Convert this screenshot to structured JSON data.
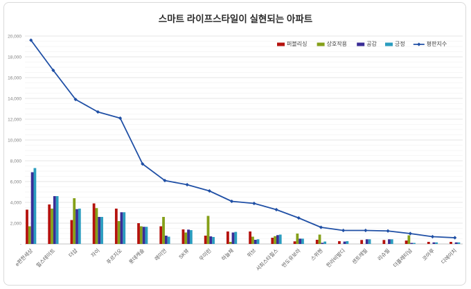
{
  "chart_data": {
    "type": "bar",
    "subtype": "grouped-bars-with-line-overlay",
    "title": "스마트 라이프스타일이 실현되는 아파트",
    "categories": [
      "e편한세상",
      "힐스테이트",
      "더샵",
      "자이",
      "푸르지오",
      "롯데캐슬",
      "래미안",
      "SK뷰",
      "우미린",
      "하늘채",
      "위브",
      "서희스타힐스",
      "반도유보라",
      "스위첸",
      "한라비발디",
      "센트레빌",
      "리슈빌",
      "더플래티넘",
      "코아루",
      "디에이치"
    ],
    "series": [
      {
        "name": "퍼블리싱",
        "type": "bar",
        "color": "#b5120d",
        "values": [
          3300,
          3800,
          2300,
          3900,
          3400,
          2000,
          1700,
          1400,
          800,
          1200,
          1200,
          600,
          250,
          400,
          270,
          380,
          380,
          330,
          200,
          200
        ]
      },
      {
        "name": "상호작용",
        "type": "bar",
        "color": "#85a019",
        "values": [
          1700,
          3400,
          4400,
          3450,
          2200,
          1700,
          2600,
          1100,
          2700,
          200,
          700,
          750,
          1000,
          900,
          0,
          0,
          0,
          830,
          0,
          0
        ]
      },
      {
        "name": "공감",
        "type": "bar",
        "color": "#3a2d96",
        "values": [
          6900,
          4600,
          3350,
          2600,
          3050,
          1650,
          800,
          1380,
          730,
          1100,
          400,
          850,
          510,
          110,
          230,
          450,
          450,
          100,
          150,
          150
        ]
      },
      {
        "name": "긍정",
        "type": "bar",
        "color": "#2b9dbf",
        "values": [
          7300,
          4600,
          3400,
          2600,
          3050,
          1650,
          700,
          1330,
          670,
          1160,
          450,
          900,
          510,
          230,
          270,
          450,
          450,
          100,
          150,
          150
        ]
      },
      {
        "name": "평판지수",
        "type": "line",
        "color": "#1f4fa5",
        "values": [
          19600,
          16700,
          13900,
          12700,
          12100,
          7700,
          6100,
          5700,
          5100,
          4100,
          3900,
          3300,
          2500,
          1600,
          1300,
          1300,
          1250,
          1000,
          700,
          600
        ]
      }
    ],
    "y_axis": {
      "min": 0,
      "max": 20000,
      "major_step": 2000,
      "minor_step": 500,
      "tick_labels": [
        "-",
        "2,000",
        "4,000",
        "6,000",
        "8,000",
        "10,000",
        "12,000",
        "14,000",
        "16,000",
        "18,000",
        "20,000"
      ]
    },
    "x_axis": {
      "label_rotation_deg": -45
    },
    "legend_position": "top-right",
    "grid": true,
    "colors": {
      "major_grid": "#e4e4e4",
      "minor_grid": "#f6f6f6",
      "axis_line": "#c0c0c0",
      "y_tick_text": "#7f7f7f",
      "x_tick_text": "#595959",
      "legend_text": "#404040"
    }
  }
}
